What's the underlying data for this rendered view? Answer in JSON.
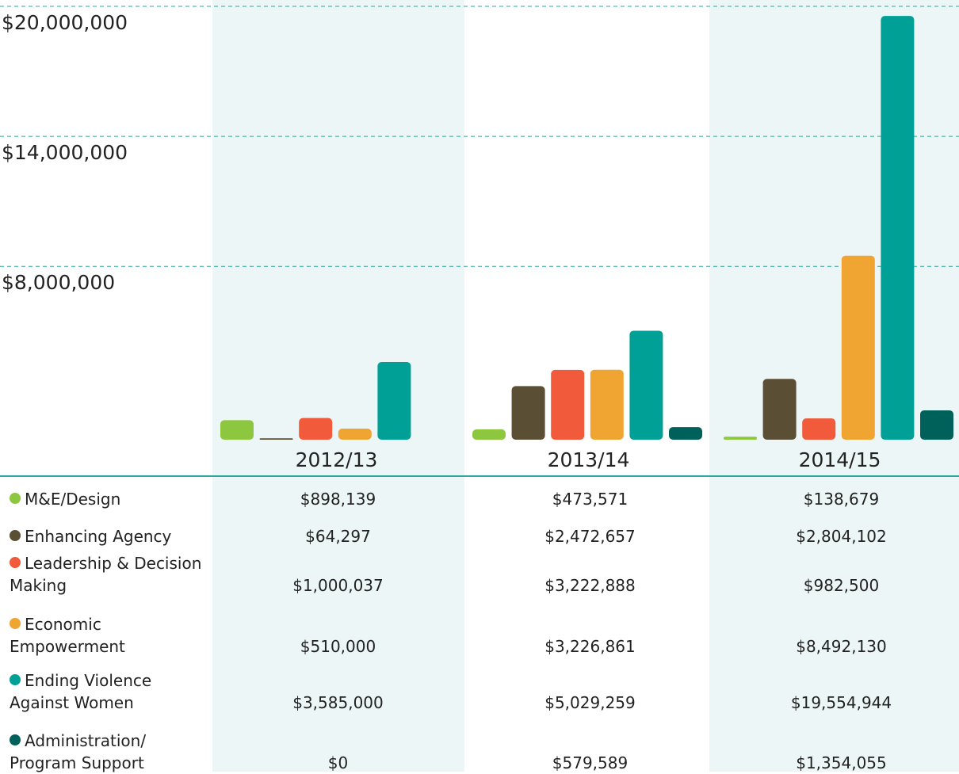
{
  "chart_data": {
    "type": "bar",
    "categories": [
      "2012/13",
      "2013/14",
      "2014/15"
    ],
    "series": [
      {
        "name": "M&E/Design",
        "color": "#8dc63f",
        "values": [
          898139,
          473571,
          138679
        ],
        "value_labels": [
          "$898,139",
          "$473,571",
          "$138,679"
        ]
      },
      {
        "name": "Enhancing Agency",
        "color": "#5a4e35",
        "values": [
          64297,
          2472657,
          2804102
        ],
        "value_labels": [
          "$64,297",
          "$2,472,657",
          "$2,804,102"
        ]
      },
      {
        "name": "Leadership & Decision Making",
        "color": "#f15a3a",
        "values": [
          1000037,
          3222888,
          982500
        ],
        "value_labels": [
          "$1,000,037",
          "$3,222,888",
          "$982,500"
        ]
      },
      {
        "name": "Economic Empowerment",
        "color": "#f0a431",
        "values": [
          510000,
          3226861,
          8492130
        ],
        "value_labels": [
          "$510,000",
          "$3,226,861",
          "$8,492,130"
        ]
      },
      {
        "name": "Ending Violence Against Women",
        "color": "#00a096",
        "values": [
          3585000,
          5029259,
          19554944
        ],
        "value_labels": [
          "$3,585,000",
          "$5,029,259",
          "$19,554,944"
        ]
      },
      {
        "name": "Administration/ Program Support",
        "color": "#00605a",
        "values": [
          0,
          579589,
          1354055
        ],
        "value_labels": [
          "$0",
          "$579,589",
          "$1,354,055"
        ]
      }
    ],
    "ylim": [
      0,
      20000000
    ],
    "yticks": [
      {
        "value": 8000000,
        "label": "$8,000,000"
      },
      {
        "value": 14000000,
        "label": "$14,000,000"
      },
      {
        "value": 20000000,
        "label": "$20,000,000"
      }
    ],
    "grid": true
  }
}
